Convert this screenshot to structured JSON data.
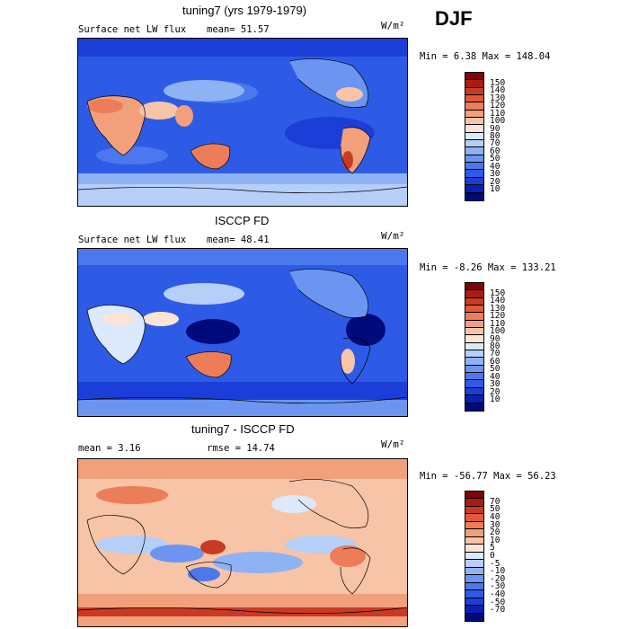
{
  "season": "DJF",
  "palettes": {
    "abs": [
      "#000a7a",
      "#0a1fb4",
      "#1c3ed8",
      "#2e5be6",
      "#4b78ec",
      "#6b95f0",
      "#8fb2f4",
      "#b5cff8",
      "#dce8fb",
      "#fbe4d6",
      "#f7c4a8",
      "#f2a07c",
      "#ec7d58",
      "#e05a3a",
      "#c93a22",
      "#a81c12",
      "#800606"
    ],
    "diff": [
      "#000a7a",
      "#0a1fb4",
      "#1c3ed8",
      "#2e5be6",
      "#4b78ec",
      "#6b95f0",
      "#8fb2f4",
      "#b5cff8",
      "#dce8fb",
      "#fbe4d6",
      "#f7c4a8",
      "#f2a07c",
      "#ec7d58",
      "#e05a3a",
      "#c93a22",
      "#a81c12",
      "#800606"
    ]
  },
  "panels": [
    {
      "title": "tuning7 (yrs 1979-1979)",
      "left": "Surface net LW flux",
      "stat": "mean=  51.57",
      "units": "W/m²",
      "minmax": "Min =    6.38 Max = 148.04",
      "ticks": [
        "150",
        "140",
        "130",
        "120",
        "110",
        "100",
        "90",
        "80",
        "70",
        "60",
        "50",
        "40",
        "30",
        "20",
        "10"
      ]
    },
    {
      "title": "ISCCP FD",
      "left": "Surface net LW flux",
      "stat": "mean=  48.41",
      "units": "W/m²",
      "minmax": "Min =  -8.26 Max = 133.21",
      "ticks": [
        "150",
        "140",
        "130",
        "120",
        "110",
        "100",
        "90",
        "80",
        "70",
        "60",
        "50",
        "40",
        "30",
        "20",
        "10"
      ]
    },
    {
      "title": "tuning7 - ISCCP FD",
      "left": "mean =    3.16",
      "stat": "rmse =  14.74",
      "units": "W/m²",
      "minmax": "Min = -56.77 Max =  56.23",
      "ticks": [
        "70",
        "50",
        "40",
        "30",
        "20",
        "10",
        "5",
        "0",
        "-5",
        "-10",
        "-20",
        "-30",
        "-40",
        "-50",
        "-70"
      ]
    }
  ]
}
